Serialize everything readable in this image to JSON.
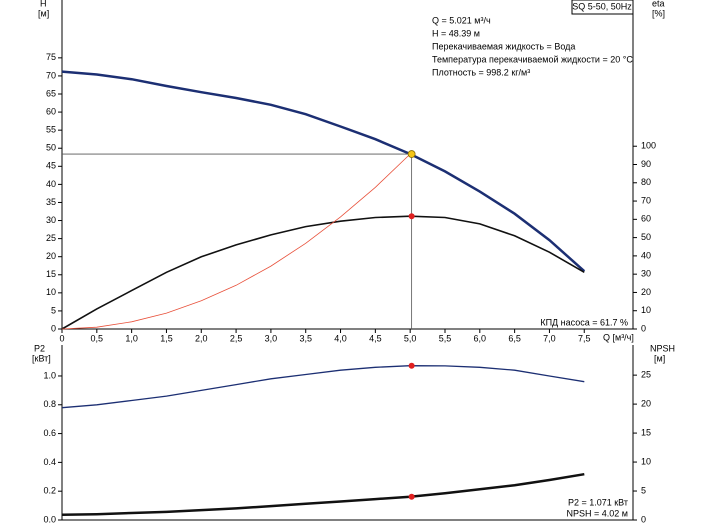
{
  "chart_data": [
    {
      "type": "line",
      "title": "SQ 5-50, 50Hz",
      "ylabel": [
        "H",
        "[м]"
      ],
      "y2label": [
        "eta",
        "[%]"
      ],
      "xlabel": "Q [м³/ч]",
      "annotations": [
        "Q = 5.021 м³/ч",
        "H = 48.39 м",
        "Перекачиваемая жидкость = Вода",
        "Температура перекачиваемой жидкости = 20 °C",
        "Плотность = 998.2 кг/м³"
      ],
      "corner_note": "КПД насоса = 61.7 %",
      "x": [
        0,
        0.5,
        1,
        1.5,
        2,
        2.5,
        3,
        3.5,
        4,
        4.5,
        5,
        5.5,
        6,
        6.5,
        7,
        7.5
      ],
      "xlim": [
        0,
        8.2
      ],
      "xticks": [
        0,
        {
          "value": 0.5,
          "label": "0,5"
        },
        {
          "value": 1,
          "label": "1,0"
        },
        {
          "value": 1.5,
          "label": "1,5"
        },
        {
          "value": 2,
          "label": "2,0"
        },
        {
          "value": 2.5,
          "label": "2,5"
        },
        {
          "value": 3,
          "label": "3,0"
        },
        {
          "value": 3.5,
          "label": "3,5"
        },
        {
          "value": 4,
          "label": "4,0"
        },
        {
          "value": 4.5,
          "label": "4,5"
        },
        {
          "value": 5,
          "label": "5,0"
        },
        {
          "value": 5.5,
          "label": "5,5"
        },
        {
          "value": 6,
          "label": "6,0"
        },
        {
          "value": 6.5,
          "label": "6,5"
        },
        {
          "value": 7,
          "label": "7,0"
        },
        {
          "value": 7.5,
          "label": "7,5"
        }
      ],
      "ylim": [
        0,
        91
      ],
      "yticks": [
        0,
        5,
        10,
        15,
        20,
        25,
        30,
        35,
        40,
        45,
        50,
        55,
        60,
        65,
        70,
        75
      ],
      "y2lim": [
        0,
        180
      ],
      "y2ticks": [
        0,
        10,
        20,
        30,
        40,
        50,
        60,
        70,
        80,
        90,
        100
      ],
      "grid": false,
      "series": [
        {
          "color": "#1c2f73",
          "values": [
            71.2,
            70.4,
            69.1,
            67.2,
            65.5,
            63.9,
            62.0,
            59.4,
            56.0,
            52.5,
            48.4,
            43.6,
            38.0,
            31.9,
            24.6,
            16.0
          ]
        },
        {
          "color": "#111111",
          "axis": "y2",
          "values": [
            0,
            11,
            21,
            31,
            39.5,
            46,
            51.5,
            56,
            59,
            61,
            61.7,
            61,
            57.5,
            51,
            42,
            31
          ]
        },
        {
          "color": "#e8503a",
          "values": [
            0,
            0.5,
            2,
            4.4,
            7.8,
            12.1,
            17.4,
            23.7,
            31,
            39.2,
            48.4,
            null,
            null,
            null,
            null,
            null
          ]
        }
      ]
    },
    {
      "type": "line",
      "ylabel": [
        "P2",
        "[кВт]"
      ],
      "y2label": [
        "NPSH",
        "[м]"
      ],
      "corner_notes": [
        "P2 = 1.071 кВт",
        "NPSH = 4.02 м"
      ],
      "x": [
        0,
        0.5,
        1,
        1.5,
        2,
        2.5,
        3,
        3.5,
        4,
        4.5,
        5,
        5.5,
        6,
        6.5,
        7,
        7.5
      ],
      "xlim": [
        0,
        8.2
      ],
      "ylim": [
        0,
        1.215
      ],
      "yticks": [
        {
          "value": 0,
          "label": "0.0"
        },
        0.2,
        0.4,
        0.6,
        0.8,
        {
          "value": 1,
          "label": "1.0"
        }
      ],
      "y2lim": [
        0,
        30.2
      ],
      "y2ticks": [
        0,
        5,
        10,
        15,
        20,
        25
      ],
      "grid": false,
      "series": [
        {
          "color": "#1c2f73",
          "values": [
            0.78,
            0.8,
            0.83,
            0.86,
            0.9,
            0.94,
            0.98,
            1.01,
            1.04,
            1.06,
            1.071,
            1.07,
            1.06,
            1.04,
            1.0,
            0.96
          ]
        },
        {
          "color": "#111111",
          "axis": "y2",
          "values": [
            0.9,
            1.0,
            1.2,
            1.4,
            1.7,
            2.0,
            2.4,
            2.8,
            3.2,
            3.6,
            4.02,
            4.6,
            5.3,
            6.0,
            6.9,
            7.9
          ]
        }
      ]
    }
  ],
  "operating_point": {
    "q": 5.021,
    "h": 48.39,
    "eta": 61.7,
    "p2": 1.071,
    "npsh": 4.02
  }
}
